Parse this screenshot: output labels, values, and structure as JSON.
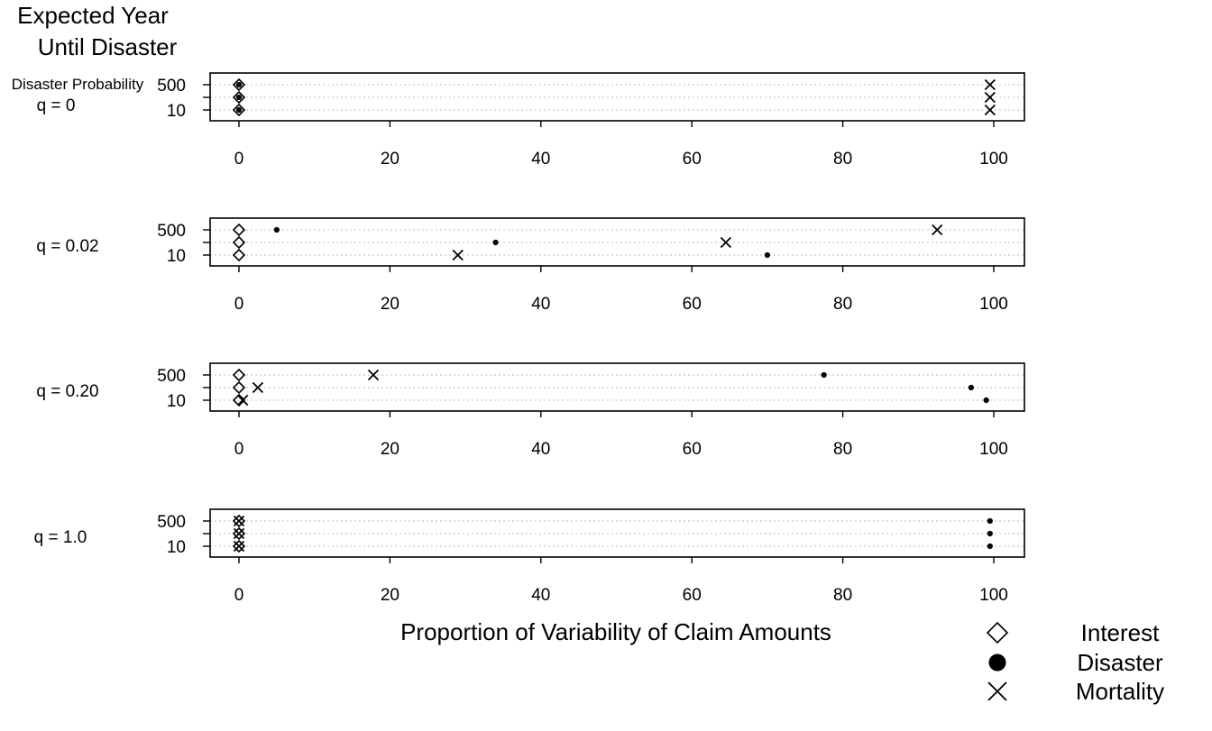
{
  "header": {
    "title_line1": "Expected Year",
    "title_line2": "Until Disaster",
    "probability_label": "Disaster Probability"
  },
  "xlabel": "Proportion of Variability of Claim Amounts",
  "chart_data": {
    "type": "scatter",
    "xlabel": "Proportion of Variability of Claim Amounts",
    "ylabel": "Expected Year Until Disaster",
    "xlim": [
      0,
      100
    ],
    "x_ticks": [
      "0",
      "20",
      "40",
      "60",
      "80",
      "100"
    ],
    "y_levels": [
      10,
      100,
      500
    ],
    "y_tick_labels": [
      "500",
      "10"
    ],
    "grid": "horizontal dotted",
    "legend": "bottom-right",
    "legend_entries": [
      {
        "name": "Interest",
        "marker": "diamond"
      },
      {
        "name": "Disaster",
        "marker": "dot"
      },
      {
        "name": "Mortality",
        "marker": "cross"
      }
    ],
    "panels": [
      {
        "label": "q = 0",
        "series": [
          {
            "name": "Interest",
            "points": [
              {
                "x": 0,
                "y": 10
              },
              {
                "x": 0,
                "y": 100
              },
              {
                "x": 0,
                "y": 500
              }
            ]
          },
          {
            "name": "Disaster",
            "points": [
              {
                "x": 0,
                "y": 10
              },
              {
                "x": 0,
                "y": 100
              },
              {
                "x": 0,
                "y": 500
              }
            ]
          },
          {
            "name": "Mortality",
            "points": [
              {
                "x": 99.5,
                "y": 10
              },
              {
                "x": 99.5,
                "y": 100
              },
              {
                "x": 99.5,
                "y": 500
              }
            ]
          }
        ]
      },
      {
        "label": "q = 0.02",
        "series": [
          {
            "name": "Interest",
            "points": [
              {
                "x": 0,
                "y": 10
              },
              {
                "x": 0,
                "y": 100
              },
              {
                "x": 0,
                "y": 500
              }
            ]
          },
          {
            "name": "Disaster",
            "points": [
              {
                "x": 70,
                "y": 10
              },
              {
                "x": 34,
                "y": 100
              },
              {
                "x": 5,
                "y": 500
              }
            ]
          },
          {
            "name": "Mortality",
            "points": [
              {
                "x": 29,
                "y": 10
              },
              {
                "x": 64.5,
                "y": 100
              },
              {
                "x": 92.5,
                "y": 500
              }
            ]
          }
        ]
      },
      {
        "label": "q = 0.20",
        "series": [
          {
            "name": "Interest",
            "points": [
              {
                "x": 0,
                "y": 10
              },
              {
                "x": 0,
                "y": 100
              },
              {
                "x": 0,
                "y": 500
              }
            ]
          },
          {
            "name": "Disaster",
            "points": [
              {
                "x": 99,
                "y": 10
              },
              {
                "x": 97,
                "y": 100
              },
              {
                "x": 77.5,
                "y": 500
              }
            ]
          },
          {
            "name": "Mortality",
            "points": [
              {
                "x": 0.5,
                "y": 10
              },
              {
                "x": 2.5,
                "y": 100
              },
              {
                "x": 17.8,
                "y": 500
              }
            ]
          }
        ]
      },
      {
        "label": "q = 1.0",
        "series": [
          {
            "name": "Interest",
            "points": [
              {
                "x": 0,
                "y": 10
              },
              {
                "x": 0,
                "y": 100
              },
              {
                "x": 0,
                "y": 500
              }
            ]
          },
          {
            "name": "Disaster",
            "points": [
              {
                "x": 99.5,
                "y": 10
              },
              {
                "x": 99.5,
                "y": 100
              },
              {
                "x": 99.5,
                "y": 500
              }
            ]
          },
          {
            "name": "Mortality",
            "points": [
              {
                "x": 0,
                "y": 10
              },
              {
                "x": 0,
                "y": 100
              },
              {
                "x": 0,
                "y": 500
              }
            ]
          }
        ]
      }
    ]
  }
}
